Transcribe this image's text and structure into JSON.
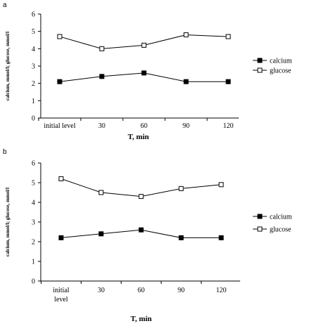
{
  "chart_data": [
    {
      "panel": "a",
      "type": "line",
      "x": [
        "initial level",
        "30",
        "60",
        "90",
        "120"
      ],
      "xlabel": "T, min",
      "ylabel": "calcium, mmol/l; glucose, mmol/l",
      "ylim": [
        0,
        6
      ],
      "yticks": [
        0,
        1,
        2,
        3,
        4,
        5,
        6
      ],
      "legend_position": "right",
      "series": [
        {
          "name": "calcium",
          "marker": "filled-square",
          "values": [
            2.1,
            2.4,
            2.6,
            2.1,
            2.1
          ]
        },
        {
          "name": "glucose",
          "marker": "open-square",
          "values": [
            4.7,
            4.0,
            4.2,
            4.8,
            4.7
          ]
        }
      ]
    },
    {
      "panel": "b",
      "type": "line",
      "x": [
        "initial level",
        "30",
        "60",
        "90",
        "120"
      ],
      "xlabel": "T, min",
      "ylabel": "calcium, mmol/l; glucose, mmol/l",
      "ylim": [
        0,
        6
      ],
      "yticks": [
        0,
        1,
        2,
        3,
        4,
        5,
        6
      ],
      "legend_position": "right",
      "series": [
        {
          "name": "calcium",
          "marker": "filled-square",
          "values": [
            2.2,
            2.4,
            2.6,
            2.2,
            2.2
          ]
        },
        {
          "name": "glucose",
          "marker": "open-square",
          "values": [
            5.2,
            4.5,
            4.3,
            4.7,
            4.9
          ]
        }
      ]
    }
  ]
}
